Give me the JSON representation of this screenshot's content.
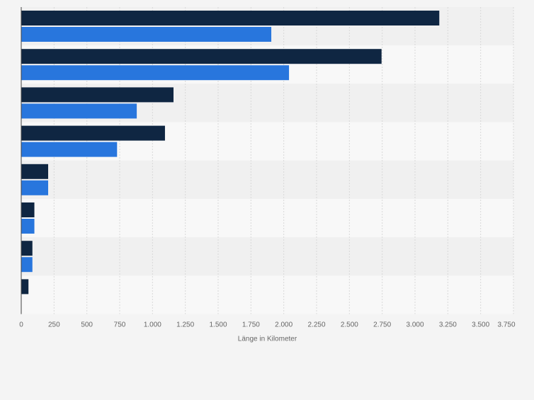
{
  "chart_data": {
    "type": "bar",
    "orientation": "horizontal",
    "title": "",
    "xlabel": "Länge in Kilometer",
    "ylabel": "",
    "categories": [
      "",
      "",
      "",
      "",
      "",
      "",
      "",
      ""
    ],
    "series": [
      {
        "values": [
          3185,
          2745,
          1160,
          1095,
          205,
          100,
          85,
          55
        ]
      },
      {
        "values": [
          1905,
          2040,
          880,
          730,
          205,
          100,
          85,
          null
        ]
      }
    ],
    "xlim": [
      0,
      3750
    ],
    "ticks": [
      0,
      250,
      500,
      750,
      1000,
      1250,
      1500,
      1750,
      2000,
      2250,
      2500,
      2750,
      3000,
      3250,
      3500,
      3750
    ],
    "tick_labels": [
      "0",
      "250",
      "500",
      "750",
      "1.000",
      "1.250",
      "1.500",
      "1.750",
      "2.000",
      "2.250",
      "2.500",
      "2.750",
      "3.000",
      "3.250",
      "3.500",
      "3.750"
    ],
    "grid": true,
    "legend": "none",
    "colors": {
      "series": [
        "#0f2642",
        "#2876dd"
      ],
      "band_dark": "#f0f0f0",
      "band_light": "#f8f8f8",
      "grid": "#d9d9d9",
      "axis": "#444444",
      "tick_text": "#666666",
      "background": "#f4f4f4"
    }
  }
}
